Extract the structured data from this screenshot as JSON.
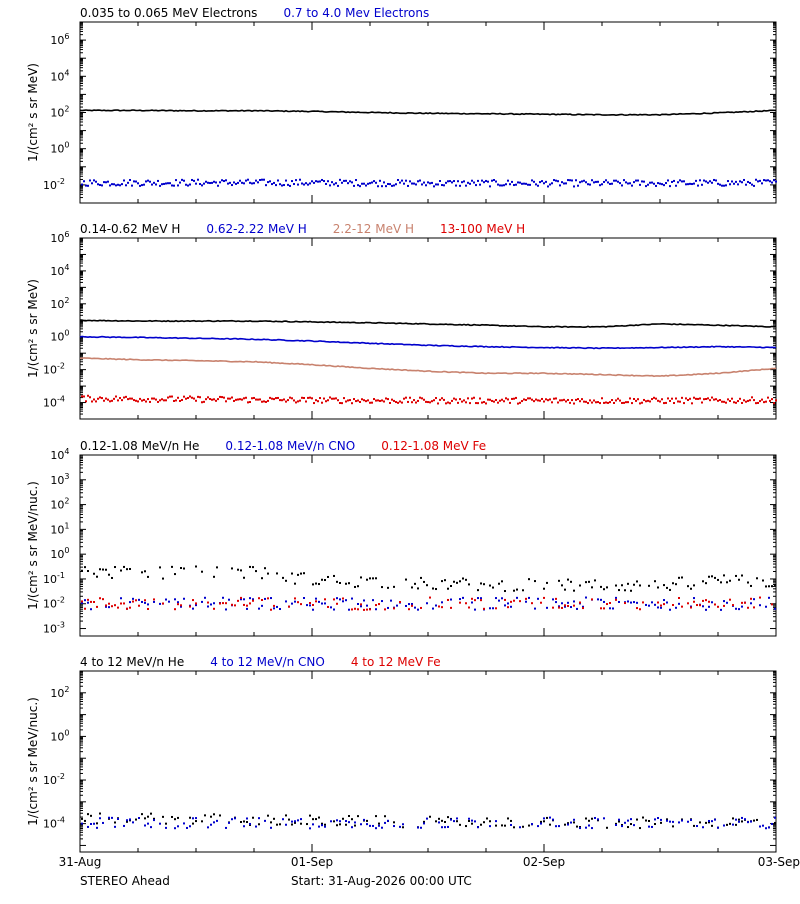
{
  "page": {
    "spacecraft": "STEREO Ahead",
    "start_label": "Start: 31-Aug-2026 00:00 UTC"
  },
  "chart_data": [
    {
      "type": "scatter",
      "scale": "log",
      "ylim": [
        0.001,
        10000000
      ],
      "xlim": [
        0,
        3
      ],
      "xticks": [
        "31-Aug",
        "01-Sep",
        "02-Sep",
        "03-Sep"
      ],
      "ylabel": "1/(cm² s sr MeV)",
      "y_tick_labels": [
        {
          "value": 1000000,
          "label": "10",
          "exp": "6"
        },
        {
          "value": 10000,
          "label": "10",
          "exp": "4"
        },
        {
          "value": 100,
          "label": "10",
          "exp": "2"
        },
        {
          "value": 1,
          "label": "10",
          "exp": "0"
        },
        {
          "value": 0.01,
          "label": "10",
          "exp": "-2"
        }
      ],
      "series": [
        {
          "name": "0.035 to 0.065 MeV Electrons",
          "color": "#000000",
          "style": "line",
          "x": [
            0,
            0.25,
            0.5,
            0.75,
            1.0,
            1.25,
            1.5,
            1.75,
            2.0,
            2.25,
            2.5,
            2.75,
            3.0
          ],
          "y": [
            130,
            130,
            125,
            125,
            115,
            100,
            90,
            85,
            80,
            75,
            75,
            95,
            130
          ]
        },
        {
          "name": "0.7 to 4.0 Mev Electrons",
          "color": "#0000cc",
          "style": "dots",
          "x": [
            0,
            0.5,
            1.0,
            1.5,
            2.0,
            2.5,
            3.0
          ],
          "y": [
            0.015,
            0.015,
            0.015,
            0.014,
            0.014,
            0.014,
            0.015
          ]
        }
      ]
    },
    {
      "type": "scatter",
      "scale": "log",
      "ylim": [
        1e-05,
        1000000
      ],
      "xlim": [
        0,
        3
      ],
      "xticks": [
        "31-Aug",
        "01-Sep",
        "02-Sep",
        "03-Sep"
      ],
      "ylabel": "1/(cm² s sr MeV)",
      "y_tick_labels": [
        {
          "value": 1000000,
          "label": "10",
          "exp": "6"
        },
        {
          "value": 10000,
          "label": "10",
          "exp": "4"
        },
        {
          "value": 100,
          "label": "10",
          "exp": "2"
        },
        {
          "value": 1,
          "label": "10",
          "exp": "0"
        },
        {
          "value": 0.01,
          "label": "10",
          "exp": "-2"
        },
        {
          "value": 0.0001,
          "label": "10",
          "exp": "-4"
        }
      ],
      "series": [
        {
          "name": "0.14-0.62 MeV H",
          "color": "#000000",
          "style": "line",
          "x": [
            0,
            0.25,
            0.5,
            0.75,
            1.0,
            1.25,
            1.5,
            1.75,
            2.0,
            2.25,
            2.5,
            2.75,
            3.0
          ],
          "y": [
            10,
            9,
            9,
            9,
            8,
            7,
            6,
            5,
            4,
            4,
            6,
            5,
            4
          ]
        },
        {
          "name": "0.62-2.22 MeV H",
          "color": "#0000cc",
          "style": "line",
          "x": [
            0,
            0.25,
            0.5,
            0.75,
            1.0,
            1.25,
            1.5,
            1.75,
            2.0,
            2.25,
            2.5,
            2.75,
            3.0
          ],
          "y": [
            1.0,
            0.9,
            0.8,
            0.7,
            0.55,
            0.4,
            0.3,
            0.25,
            0.22,
            0.2,
            0.22,
            0.25,
            0.22
          ]
        },
        {
          "name": "2.2-12 MeV H",
          "color": "#c8826e",
          "style": "line",
          "x": [
            0,
            0.25,
            0.5,
            0.75,
            1.0,
            1.25,
            1.5,
            1.75,
            2.0,
            2.25,
            2.5,
            2.75,
            3.0
          ],
          "y": [
            0.05,
            0.04,
            0.035,
            0.03,
            0.02,
            0.012,
            0.008,
            0.006,
            0.006,
            0.005,
            0.004,
            0.006,
            0.012
          ]
        },
        {
          "name": "13-100 MeV H",
          "color": "#dd0000",
          "style": "dots",
          "x": [
            0,
            0.5,
            1.0,
            1.5,
            2.0,
            2.5,
            3.0
          ],
          "y": [
            0.0002,
            0.00018,
            0.00016,
            0.00015,
            0.00015,
            0.00015,
            0.00016
          ]
        }
      ]
    },
    {
      "type": "scatter",
      "scale": "log",
      "ylim": [
        0.0005,
        10000
      ],
      "xlim": [
        0,
        3
      ],
      "xticks": [
        "31-Aug",
        "01-Sep",
        "02-Sep",
        "03-Sep"
      ],
      "ylabel": "1/(cm² s sr MeV/nuc.)",
      "y_tick_labels": [
        {
          "value": 10000,
          "label": "10",
          "exp": "4"
        },
        {
          "value": 1000,
          "label": "10",
          "exp": "3"
        },
        {
          "value": 100,
          "label": "10",
          "exp": "2"
        },
        {
          "value": 10,
          "label": "10",
          "exp": "1"
        },
        {
          "value": 1,
          "label": "10",
          "exp": "0"
        },
        {
          "value": 0.1,
          "label": "10",
          "exp": "-1"
        },
        {
          "value": 0.01,
          "label": "10",
          "exp": "-2"
        },
        {
          "value": 0.001,
          "label": "10",
          "exp": "-3"
        }
      ],
      "series": [
        {
          "name": "0.12-1.08 MeV/n He",
          "color": "#000000",
          "style": "dots",
          "x": [
            0,
            0.25,
            0.5,
            0.75,
            1.0,
            1.5,
            2.0,
            2.5,
            2.75,
            3.0
          ],
          "y": [
            0.2,
            0.2,
            0.2,
            0.2,
            0.1,
            0.07,
            0.06,
            0.06,
            0.1,
            0.08
          ]
        },
        {
          "name": "0.12-1.08 MeV/n CNO",
          "color": "#0000cc",
          "style": "dots",
          "x": [
            0,
            0.5,
            1.0,
            1.5,
            2.0,
            2.5,
            3.0
          ],
          "y": [
            0.011,
            0.011,
            0.011,
            0.011,
            0.011,
            0.011,
            0.011
          ]
        },
        {
          "name": "0.12-1.08 MeV Fe",
          "color": "#dd0000",
          "style": "dots",
          "x": [
            0,
            0.5,
            1.0,
            1.5,
            2.0,
            2.5,
            3.0
          ],
          "y": [
            0.011,
            0.011,
            0.011,
            0.011,
            0.011,
            0.011,
            0.011
          ]
        }
      ]
    },
    {
      "type": "scatter",
      "scale": "log",
      "ylim": [
        5e-06,
        1000
      ],
      "xlim": [
        0,
        3
      ],
      "xticks": [
        "31-Aug",
        "01-Sep",
        "02-Sep",
        "03-Sep"
      ],
      "ylabel": "1/(cm² s sr MeV/nuc.)",
      "y_tick_labels": [
        {
          "value": 100,
          "label": "10",
          "exp": "2"
        },
        {
          "value": 1,
          "label": "10",
          "exp": "0"
        },
        {
          "value": 0.01,
          "label": "10",
          "exp": "-2"
        },
        {
          "value": 0.0001,
          "label": "10",
          "exp": "-4"
        }
      ],
      "series": [
        {
          "name": "4 to 12 MeV/n He",
          "color": "#000000",
          "style": "dots",
          "x": [
            0,
            0.5,
            1.0,
            1.5,
            2.0,
            2.5,
            3.0
          ],
          "y": [
            0.0002,
            0.00018,
            0.00015,
            0.00013,
            0.00012,
            0.00012,
            0.00013
          ]
        },
        {
          "name": "4 to 12 MeV/n CNO",
          "color": "#0000cc",
          "style": "dots",
          "x": [
            0,
            0.5,
            1.0,
            1.5,
            2.0,
            2.5,
            3.0
          ],
          "y": [
            0.00012,
            0.00012,
            0.00012,
            0.00012,
            0.00012,
            0.00012,
            0.00012
          ]
        },
        {
          "name": "4 to 12 MeV Fe",
          "color": "#dd0000",
          "style": "dots",
          "x": [],
          "y": []
        }
      ]
    }
  ]
}
